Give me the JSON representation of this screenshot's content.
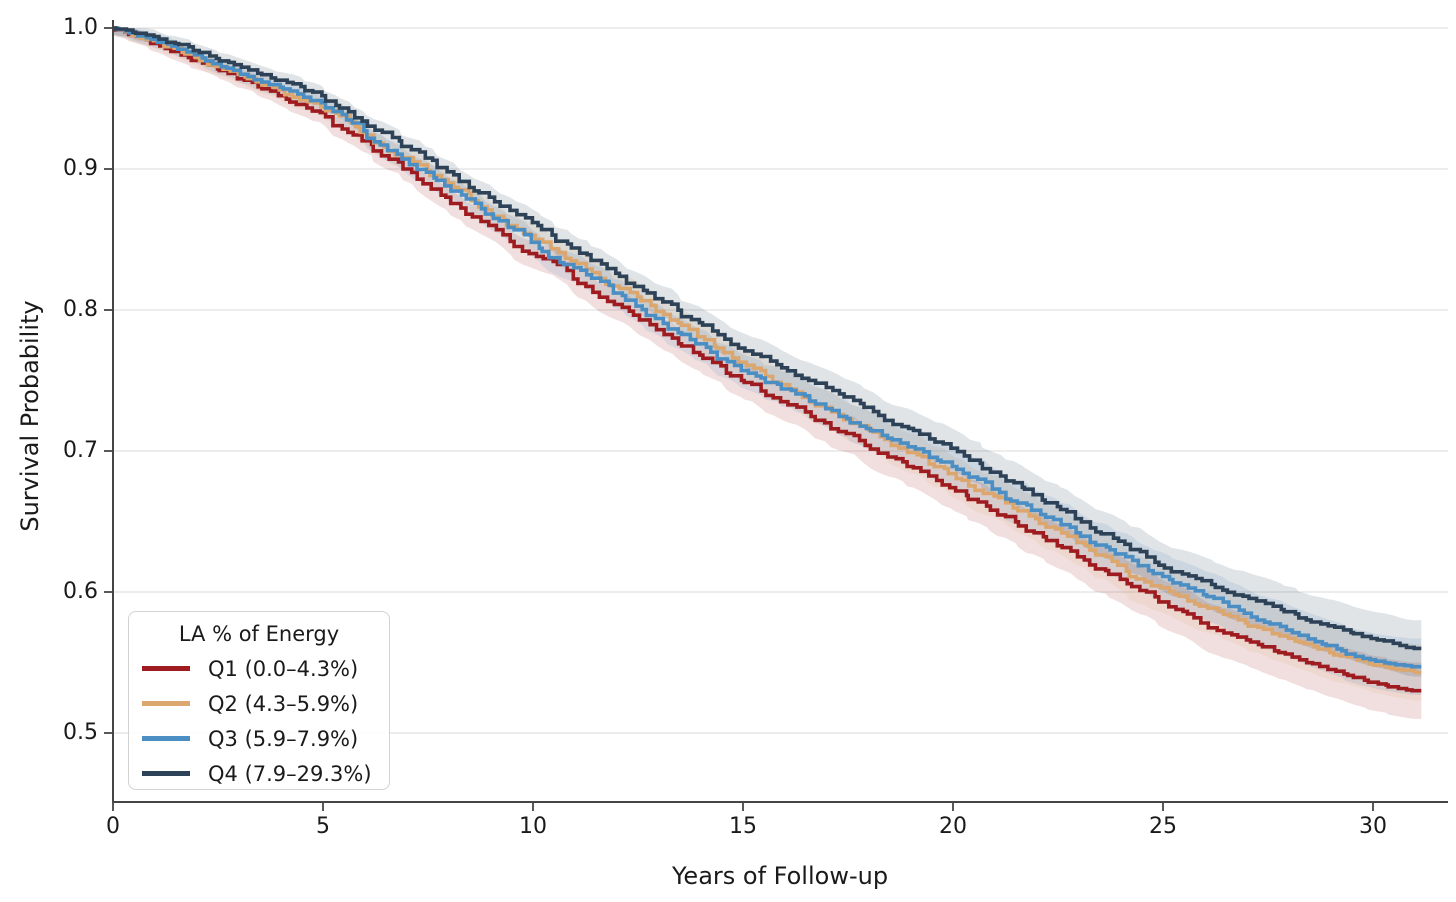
{
  "chart_data": {
    "type": "line",
    "subtype": "kaplan-meier-step-curves-with-confidence-bands",
    "title": "",
    "xlabel": "Years of Follow-up",
    "ylabel": "Survival Probability",
    "xlim": [
      0,
      31.5
    ],
    "ylim": [
      0.455,
      1.0
    ],
    "grid": "horizontal-only",
    "xticks": [
      0,
      5,
      10,
      15,
      20,
      25,
      30
    ],
    "xtick_labels": [
      "0",
      "5",
      "10",
      "15",
      "20",
      "25",
      "30"
    ],
    "yticks": [
      1.0,
      0.9,
      0.8,
      0.7,
      0.6,
      0.5
    ],
    "ytick_labels": [
      "1.0",
      "0.9",
      "0.8",
      "0.7",
      "0.6",
      "0.5"
    ],
    "legend": {
      "title": "LA % of Energy",
      "position": "lower left"
    },
    "x_years": [
      0,
      1,
      2,
      3,
      4,
      5,
      6,
      7,
      8,
      9,
      10,
      11,
      12,
      13,
      14,
      15,
      16,
      17,
      18,
      19,
      20,
      21,
      22,
      23,
      24,
      25,
      26,
      27,
      28,
      29,
      30,
      31
    ],
    "series": [
      {
        "name": "Q1 (0.0–4.3%)",
        "color": "#9e1c1f",
        "values": [
          1.0,
          0.989,
          0.977,
          0.964,
          0.952,
          0.94,
          0.92,
          0.9,
          0.88,
          0.86,
          0.84,
          0.822,
          0.804,
          0.786,
          0.768,
          0.75,
          0.735,
          0.72,
          0.704,
          0.689,
          0.674,
          0.658,
          0.642,
          0.625,
          0.609,
          0.593,
          0.578,
          0.566,
          0.556,
          0.545,
          0.536,
          0.53
        ]
      },
      {
        "name": "Q2 (4.3–5.9%)",
        "color": "#dba76f",
        "values": [
          1.0,
          0.991,
          0.979,
          0.967,
          0.956,
          0.944,
          0.926,
          0.908,
          0.89,
          0.871,
          0.853,
          0.835,
          0.817,
          0.799,
          0.781,
          0.763,
          0.747,
          0.731,
          0.715,
          0.699,
          0.684,
          0.668,
          0.652,
          0.635,
          0.619,
          0.603,
          0.59,
          0.578,
          0.567,
          0.557,
          0.549,
          0.543
        ]
      },
      {
        "name": "Q3 (5.9–7.9%)",
        "color": "#4b8ec4",
        "values": [
          1.0,
          0.992,
          0.981,
          0.97,
          0.958,
          0.947,
          0.927,
          0.907,
          0.888,
          0.868,
          0.848,
          0.83,
          0.812,
          0.794,
          0.776,
          0.757,
          0.744,
          0.73,
          0.716,
          0.703,
          0.689,
          0.673,
          0.658,
          0.642,
          0.627,
          0.611,
          0.598,
          0.585,
          0.573,
          0.562,
          0.552,
          0.547
        ]
      },
      {
        "name": "Q4 (7.9–29.3%)",
        "color": "#2d4257",
        "values": [
          1.0,
          0.994,
          0.984,
          0.974,
          0.963,
          0.952,
          0.934,
          0.916,
          0.898,
          0.88,
          0.862,
          0.844,
          0.826,
          0.808,
          0.791,
          0.773,
          0.759,
          0.745,
          0.731,
          0.716,
          0.702,
          0.685,
          0.669,
          0.652,
          0.636,
          0.619,
          0.608,
          0.597,
          0.586,
          0.576,
          0.567,
          0.56
        ]
      }
    ],
    "confidence_bands": true,
    "colors": {
      "gridline": "#e7e7e7",
      "spine": "#454545",
      "tick_text": "#1a1a1a"
    }
  }
}
